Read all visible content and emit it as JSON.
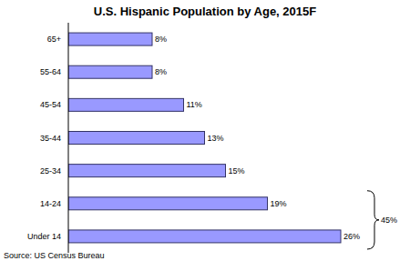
{
  "chart_data": {
    "type": "bar",
    "title": "U.S. Hispanic Population by Age, 2015F",
    "orientation": "horizontal",
    "categories": [
      "65+",
      "55-64",
      "45-54",
      "35-44",
      "25-34",
      "14-24",
      "Under 14"
    ],
    "values": [
      8,
      8,
      11,
      13,
      15,
      19,
      26
    ],
    "value_labels": [
      "8%",
      "8%",
      "11%",
      "13%",
      "15%",
      "19%",
      "26%"
    ],
    "data_labels": true,
    "color": "#9999ff",
    "xlim": [
      0,
      30
    ],
    "grid": false,
    "tick_labels": "y",
    "annotations": [
      {
        "text": "45%"
      }
    ],
    "source": "Source: US Census Bureau"
  }
}
